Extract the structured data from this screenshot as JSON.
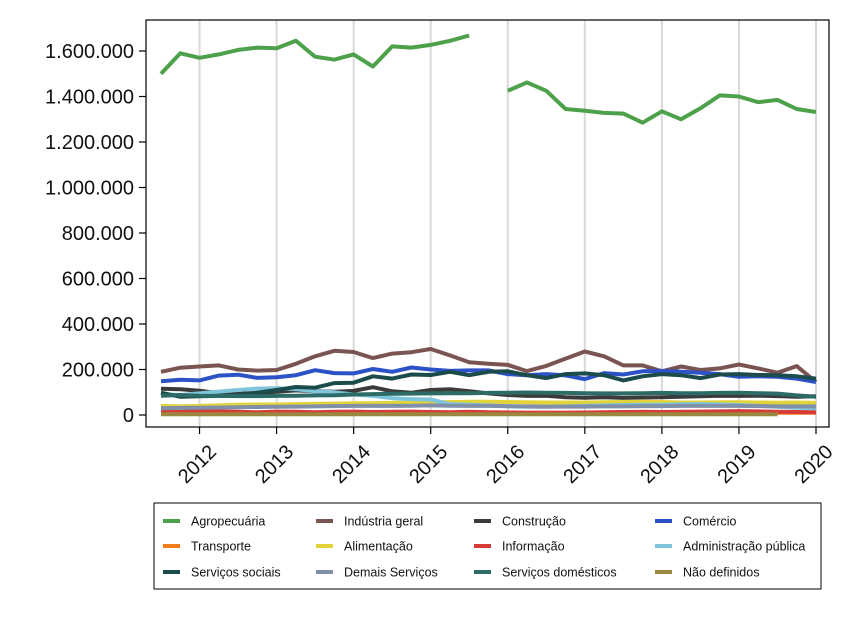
{
  "chart_data": {
    "type": "line",
    "title": "",
    "xlabel": "",
    "ylabel": "",
    "ylim": [
      0,
      1700000
    ],
    "yticks": [
      {
        "value": 0,
        "label": "0"
      },
      {
        "value": 200000,
        "label": "200.000"
      },
      {
        "value": 400000,
        "label": "400.000"
      },
      {
        "value": 600000,
        "label": "600.000"
      },
      {
        "value": 800000,
        "label": "800.000"
      },
      {
        "value": 1000000,
        "label": "1.000.000"
      },
      {
        "value": 1200000,
        "label": "1.200.000"
      },
      {
        "value": 1400000,
        "label": "1.400.000"
      },
      {
        "value": 1600000,
        "label": "1.600.000"
      }
    ],
    "xlim": [
      2011.5,
      2020.0
    ],
    "xticks": [
      {
        "value": 2012,
        "label": "2012"
      },
      {
        "value": 2013,
        "label": "2013"
      },
      {
        "value": 2014,
        "label": "2014"
      },
      {
        "value": 2015,
        "label": "2015"
      },
      {
        "value": 2016,
        "label": "2016"
      },
      {
        "value": 2017,
        "label": "2017"
      },
      {
        "value": 2018,
        "label": "2018"
      },
      {
        "value": 2019,
        "label": "2019"
      },
      {
        "value": 2020,
        "label": "2020"
      }
    ],
    "grid": "vertical",
    "legend_position": "bottom",
    "x": [
      2011.5,
      2011.75,
      2012.0,
      2012.25,
      2012.5,
      2012.75,
      2013.0,
      2013.25,
      2013.5,
      2013.75,
      2014.0,
      2014.25,
      2014.5,
      2014.75,
      2015.0,
      2015.25,
      2015.5,
      2015.75,
      2016.0,
      2016.25,
      2016.5,
      2016.75,
      2017.0,
      2017.25,
      2017.5,
      2017.75,
      2018.0,
      2018.25,
      2018.5,
      2018.75,
      2019.0,
      2019.25,
      2019.5,
      2019.75,
      2020.0
    ],
    "series": [
      {
        "name": "Agropecuária",
        "color": "#4ea14b",
        "values": [
          1500000,
          1590000,
          1570000,
          1585000,
          1605000,
          1615000,
          1612000,
          1645000,
          1575000,
          1562000,
          1585000,
          1532000,
          1620000,
          1615000,
          1627000,
          1645000,
          1668000,
          null,
          1425000,
          1462000,
          1425000,
          1345000,
          1337000,
          1328000,
          1325000,
          1285000,
          1335000,
          1300000,
          1348000,
          1405000,
          1400000,
          1375000,
          1385000,
          1345000,
          1332000
        ]
      },
      {
        "name": "Indústria geral",
        "color": "#7a5450",
        "values": [
          190000,
          208000,
          213000,
          218000,
          200000,
          195000,
          198000,
          225000,
          258000,
          282000,
          277000,
          250000,
          270000,
          276000,
          290000,
          262000,
          232000,
          225000,
          220000,
          193000,
          216000,
          248000,
          279000,
          258000,
          218000,
          218000,
          192000,
          213000,
          198000,
          205000,
          222000,
          205000,
          186000,
          215000,
          145000
        ]
      },
      {
        "name": "Construção",
        "color": "#3b3b3b",
        "values": [
          115000,
          113000,
          107000,
          96000,
          93000,
          97000,
          102000,
          108000,
          105000,
          102000,
          106000,
          122000,
          104000,
          98000,
          110000,
          113000,
          104000,
          95000,
          88000,
          84000,
          85000,
          78000,
          76000,
          78000,
          75000,
          77000,
          78000,
          80000,
          82000,
          85000,
          84000,
          85000,
          83000,
          80000,
          82000
        ]
      },
      {
        "name": "Comércio",
        "color": "#2c52c7",
        "values": [
          148000,
          155000,
          152000,
          173000,
          177000,
          163000,
          166000,
          175000,
          197000,
          184000,
          183000,
          202000,
          190000,
          209000,
          200000,
          194000,
          196000,
          196000,
          180000,
          175000,
          180000,
          174000,
          158000,
          184000,
          178000,
          192000,
          194000,
          190000,
          186000,
          180000,
          168000,
          170000,
          168000,
          160000,
          145000
        ]
      },
      {
        "name": "Transporte",
        "color": "#f07c1a",
        "values": [
          10000,
          11000,
          11000,
          12000,
          11000,
          11000,
          12000,
          12000,
          11000,
          12000,
          12000,
          12000,
          11000,
          11000,
          11000,
          11000,
          11000,
          11000,
          10000,
          10000,
          10000,
          10000,
          10000,
          10000,
          10000,
          10000,
          10000,
          10000,
          10000,
          10000,
          10000,
          10000,
          10000,
          10000,
          10000
        ]
      },
      {
        "name": "Alimentação",
        "color": "#e3d33a",
        "values": [
          40000,
          38000,
          40000,
          42000,
          45000,
          46000,
          46000,
          48000,
          49000,
          50000,
          52000,
          52000,
          53000,
          54000,
          55000,
          57000,
          58000,
          58000,
          57000,
          56000,
          55000,
          55000,
          55000,
          56000,
          57000,
          58000,
          57000,
          55000,
          55000,
          56000,
          56000,
          55000,
          54000,
          55000,
          53000
        ]
      },
      {
        "name": "Informação",
        "color": "#d63b37",
        "values": [
          15000,
          14000,
          18000,
          16000,
          14000,
          12000,
          15000,
          14000,
          12000,
          14000,
          15000,
          13000,
          14000,
          15000,
          13000,
          12000,
          14000,
          12000,
          11000,
          10000,
          10000,
          10000,
          11000,
          12000,
          13000,
          14000,
          13000,
          14000,
          15000,
          16000,
          17000,
          16000,
          14000,
          13000,
          12000
        ]
      },
      {
        "name": "Administração pública",
        "color": "#7ec4db",
        "values": [
          92000,
          88000,
          95000,
          103000,
          110000,
          116000,
          118000,
          114000,
          104000,
          100000,
          90000,
          84000,
          74000,
          70000,
          68000,
          48000,
          45000,
          42000,
          38000,
          36000,
          36000,
          38000,
          40000,
          42000,
          44000,
          45000,
          45000,
          47000,
          48000,
          46000,
          44000,
          40000,
          36000,
          32000,
          30000
        ]
      },
      {
        "name": "Serviços sociais",
        "color": "#1c4b4b",
        "values": [
          98000,
          80000,
          82000,
          84000,
          87000,
          98000,
          110000,
          123000,
          120000,
          140000,
          142000,
          170000,
          160000,
          178000,
          176000,
          190000,
          175000,
          190000,
          192000,
          175000,
          162000,
          180000,
          183000,
          175000,
          152000,
          170000,
          180000,
          175000,
          162000,
          178000,
          180000,
          176000,
          175000,
          170000,
          160000
        ]
      },
      {
        "name": "Demais Serviços",
        "color": "#8090a8",
        "values": [
          30000,
          31000,
          32000,
          33000,
          34000,
          35000,
          36000,
          37000,
          38000,
          39000,
          40000,
          40000,
          40000,
          41000,
          42000,
          41000,
          40000,
          40000,
          39000,
          38000,
          37000,
          37000,
          37000,
          38000,
          38000,
          39000,
          39000,
          40000,
          40000,
          40000,
          40000,
          39000,
          38000,
          38000,
          38000
        ]
      },
      {
        "name": "Serviços domésticos",
        "color": "#2d6b66",
        "values": [
          85000,
          88000,
          85000,
          84000,
          83000,
          83000,
          84000,
          85000,
          86000,
          87000,
          90000,
          92000,
          93000,
          94000,
          95000,
          96000,
          96000,
          97000,
          98000,
          99000,
          98000,
          97000,
          96000,
          95000,
          95000,
          96000,
          97000,
          96000,
          96000,
          97000,
          98000,
          96000,
          94000,
          86000,
          80000
        ]
      },
      {
        "name": "Não definidos",
        "color": "#9a8840",
        "values": [
          3000,
          3000,
          3000,
          3000,
          3000,
          3000,
          3000,
          3000,
          3000,
          3000,
          3000,
          3000,
          3000,
          3000,
          3000,
          3000,
          3000,
          3000,
          3000,
          3000,
          3000,
          3000,
          3000,
          3000,
          3000,
          3000,
          3000,
          3000,
          3000,
          3000,
          3000,
          3000,
          3000,
          null,
          null
        ]
      }
    ]
  }
}
